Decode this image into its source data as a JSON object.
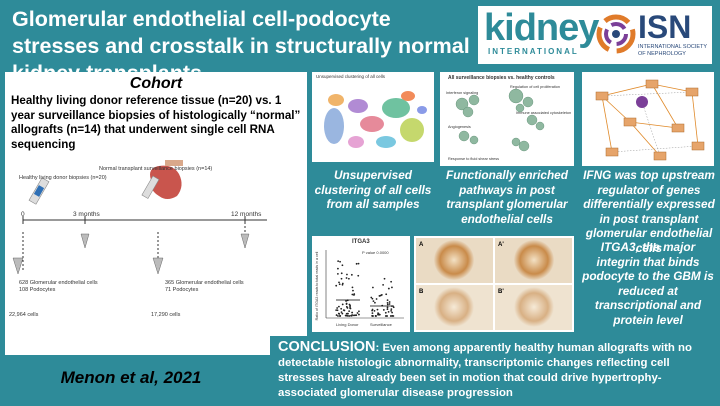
{
  "header": {
    "title": "Glomerular endothelial cell-podocyte stresses and crosstalk in structurally normal kidney transplants",
    "kidney_logo": "kidney",
    "kidney_logo_sub": "INTERNATIONAL",
    "isn_logo": "ISN",
    "isn_logo_sub": "INTERNATIONAL SOCIETY OF NEPHROLOGY"
  },
  "cohort": {
    "heading": "Cohort",
    "description": "Healthy living donor reference tissue (n=20) vs. 1 year surveillance biopsies of histologically “normal” allografts (n=14) that underwent single cell RNA sequencing",
    "timeline": {
      "donor_label": "Healthy living donor biopsies (n=20)",
      "transplant_label": "Normal transplant surveillance biopsies (n=14)",
      "t0": "0",
      "t3": "3 months",
      "t12": "12 months",
      "donor_cells": "628 Glomerular endothelial cells",
      "donor_podocytes": "108 Podocytes",
      "donor_total": "22,964 cells",
      "tx_cells": "365 Glomerular endothelial cells",
      "tx_podocytes": "71 Podocytes",
      "tx_total": "17,290 cells"
    }
  },
  "citation": "Menon et al, 2021",
  "panels": {
    "umap_title": "Unsupervised clustering of all cells",
    "umap_caption": "Unsupervised clustering of all cells from all samples",
    "pathways_title": "All surveillance biopsies vs. healthy controls",
    "pathways_labels": [
      "Interferon signaling",
      "Regulation of cell proliferation",
      "Immune associated cytoskeleton",
      "Angiogenesis",
      "Response to fluid shear stress"
    ],
    "pathways_caption": "Functionally enriched pathways in post transplant glomerular endothelial cells",
    "network_caption": "IFNG was top upstream regulator of genes differentially expressed in post transplant glomerular endothelial cells",
    "itga3_title": "ITGA3",
    "itga3_pvalue": "P value 0.0000",
    "itga3_ylabel": "Ratio of ITGA3 reads to total reads in a cell",
    "itga3_xlabels": [
      "Living Donor",
      "Surveillance"
    ],
    "ihc_labels": [
      "A",
      "A'",
      "B",
      "B'"
    ],
    "itga3_caption": "ITGA3, the major integrin that binds podocyte to the GBM is reduced at transcriptional and protein level"
  },
  "conclusion": {
    "label": "CONCLUSION",
    "text": ": Even among apparently healthy human allografts with no detectable histologic abnormality, transcriptomic changes reflecting cell stresses have already been set in motion that could drive hypertrophy-associated glomerular disease progression"
  },
  "colors": {
    "teal": "#2e8b99",
    "navy": "#29497a"
  }
}
